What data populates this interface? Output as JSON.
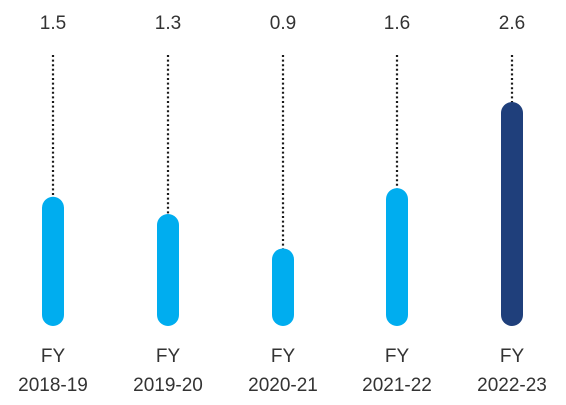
{
  "chart_data": {
    "type": "bar",
    "categories": [
      [
        "FY",
        "2018-19"
      ],
      [
        "FY",
        "2019-20"
      ],
      [
        "FY",
        "2020-21"
      ],
      [
        "FY",
        "2021-22"
      ],
      [
        "FY",
        "2022-23"
      ]
    ],
    "values": [
      1.5,
      1.3,
      0.9,
      1.6,
      2.6
    ],
    "value_labels": [
      "1.5",
      "1.3",
      "0.9",
      "1.6",
      "2.6"
    ],
    "ylim": [
      0,
      2.7
    ],
    "title": "",
    "xlabel": "",
    "ylabel": "",
    "grid": false,
    "legend": "none",
    "colors": {
      "default_bar": "#00adef",
      "highlight_bar": "#1f3f7b",
      "dotted_line": "#1a1a1a",
      "text": "#333333"
    },
    "highlight_index": 4
  }
}
